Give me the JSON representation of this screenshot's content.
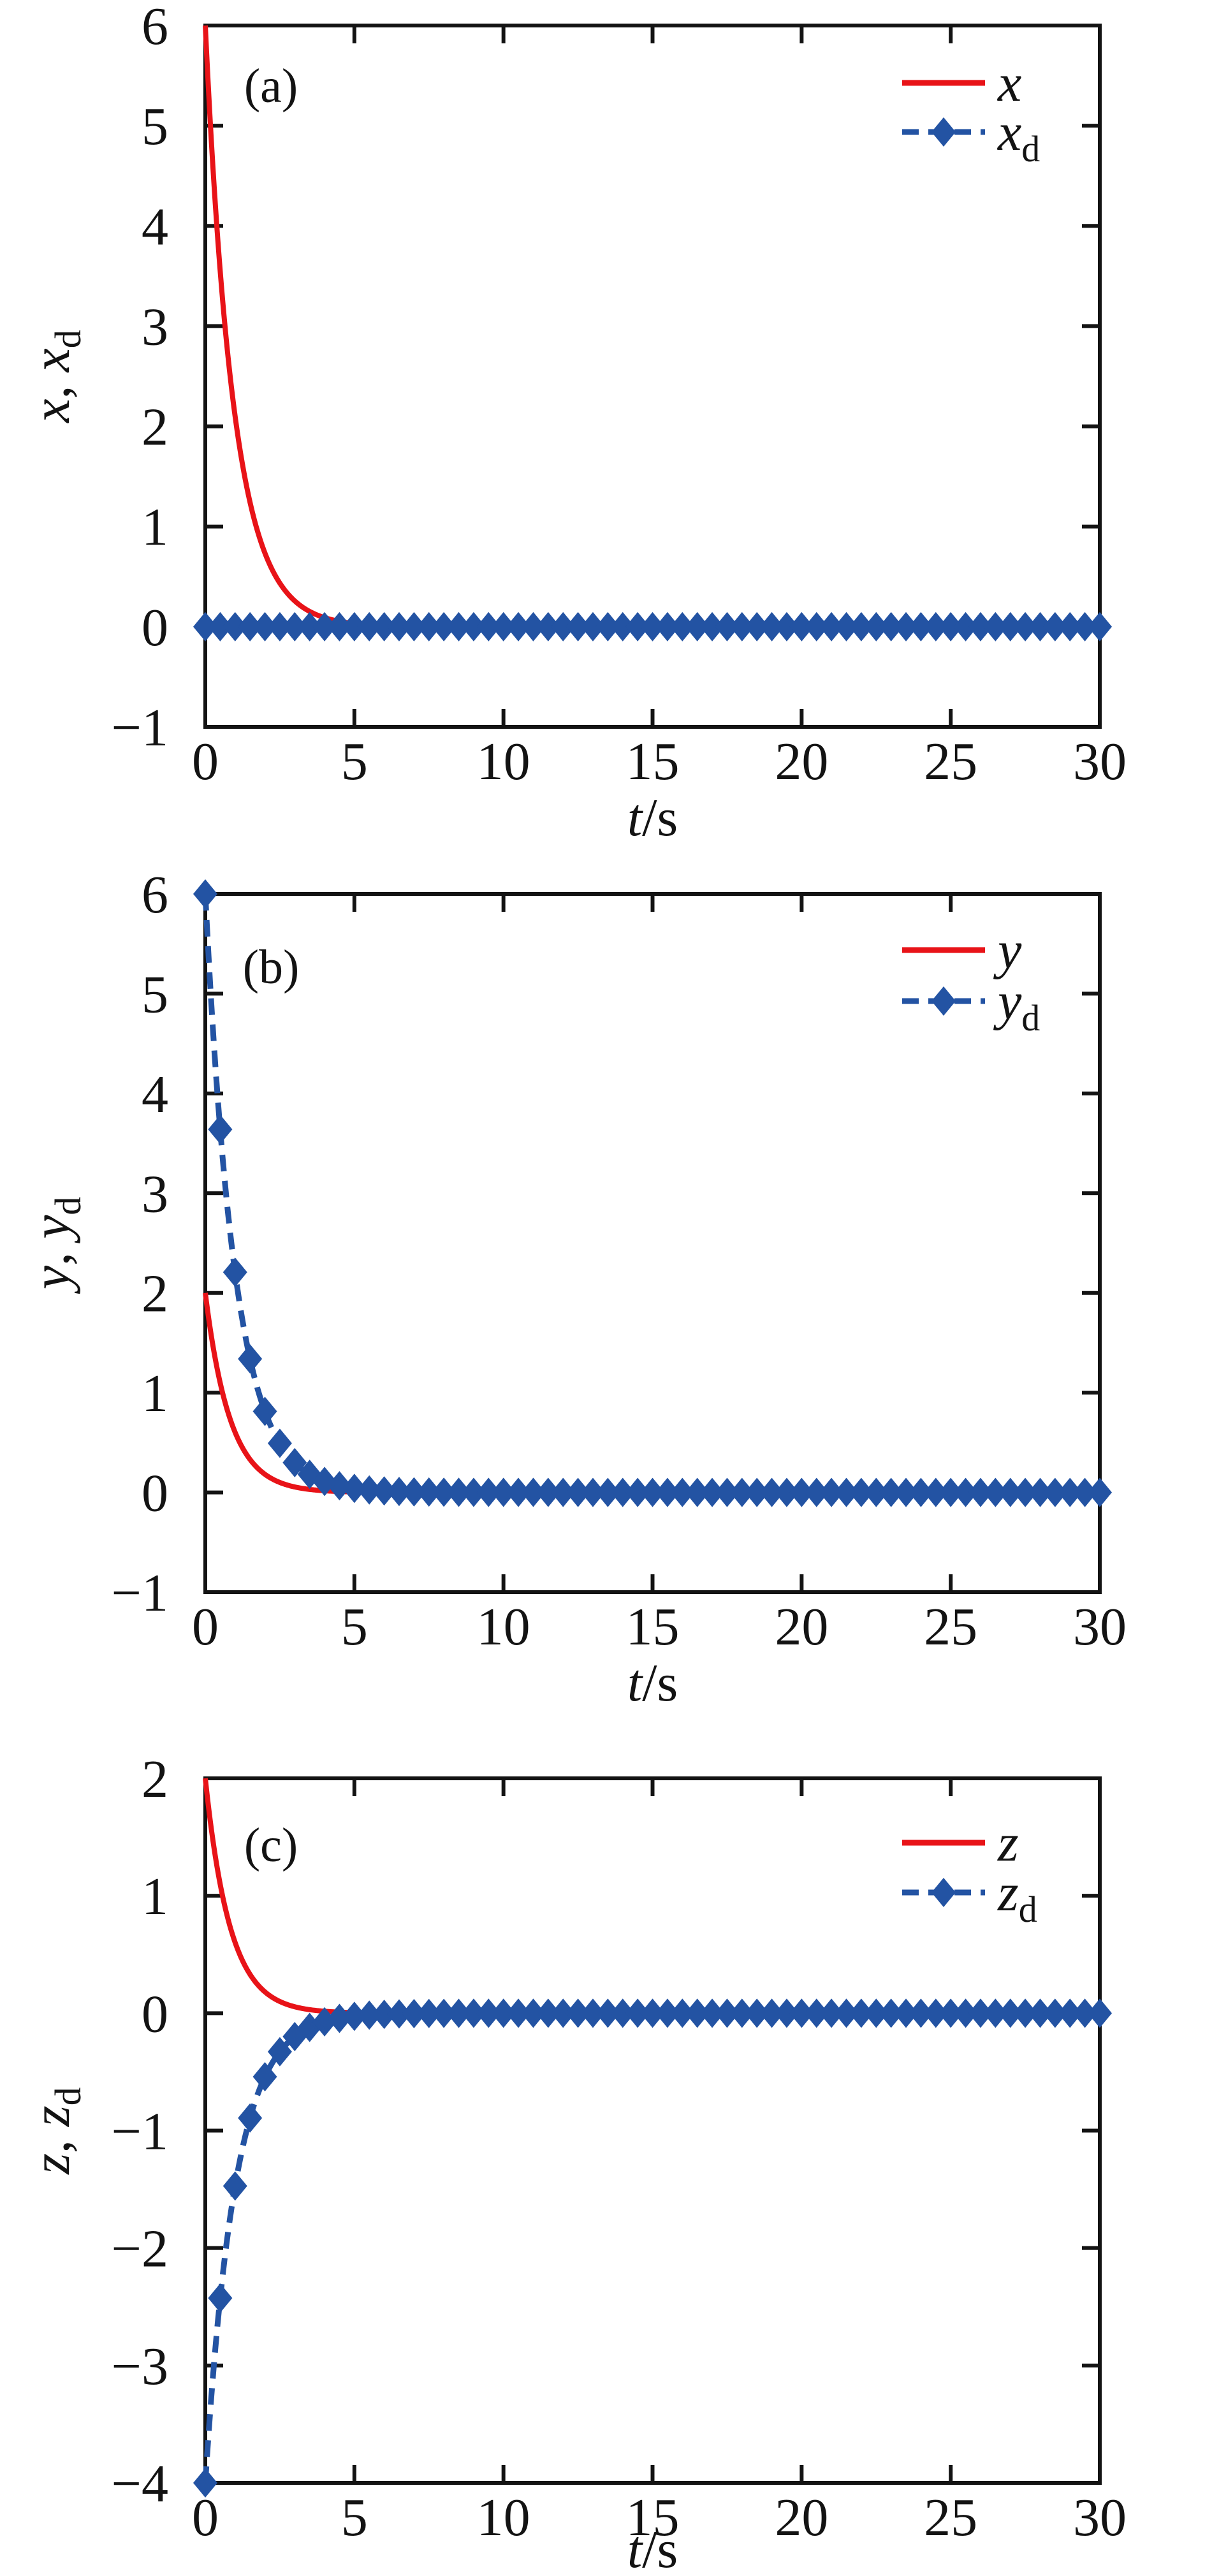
{
  "figure_title": "",
  "chart_data": {
    "type": "line",
    "description": "Three stacked time-response plots (a), (b), (c): actual states x, y, z (red solid) converging to desired trajectories x_d, y_d, z_d (blue dashed with diamond markers).",
    "grid": false,
    "legend_position": "top-right",
    "colors": {
      "actual": "#e81318",
      "desired": "#2353a3",
      "axis": "#131313",
      "background": "#ffffff"
    },
    "x_axis": {
      "label_var": "t",
      "label_sep": "/",
      "label_unit": "s",
      "min": 0,
      "max": 30,
      "ticks": [
        0,
        5,
        10,
        15,
        20,
        25,
        30
      ]
    },
    "marker_step_s": 0.5,
    "panels": [
      {
        "id": "a",
        "panel_label": "(a)",
        "ylabel": {
          "var1": "x",
          "sep": ", ",
          "var2": "x",
          "sub2": "d"
        },
        "ylim": [
          -1,
          6
        ],
        "yticks": [
          -1,
          0,
          1,
          2,
          3,
          4,
          5,
          6
        ],
        "series": [
          {
            "key": "x",
            "legend_main": "x",
            "legend_sub": "",
            "color": "#e81318",
            "line": "solid",
            "marker": "none",
            "model": "x(t) = 6*exp(-1.05*t)",
            "amp": 6,
            "rate": 1.05,
            "sample_t": [
              0,
              0.5,
              1,
              1.5,
              2,
              2.5,
              3,
              3.5,
              4,
              4.5,
              5,
              10,
              20,
              30
            ],
            "sample_y": [
              6,
              3.55,
              2.1,
              1.24,
              0.73,
              0.43,
              0.26,
              0.15,
              0.09,
              0.05,
              0.03,
              0,
              0,
              0
            ]
          },
          {
            "key": "x_d",
            "legend_main": "x",
            "legend_sub": "d",
            "color": "#2353a3",
            "line": "dashed",
            "marker": "diamond",
            "model": "x_d(t) = 0",
            "amp": 0,
            "rate": 0,
            "sample_t": [
              0,
              5,
              10,
              15,
              20,
              25,
              30
            ],
            "sample_y": [
              0,
              0,
              0,
              0,
              0,
              0,
              0
            ]
          }
        ]
      },
      {
        "id": "b",
        "panel_label": "(b)",
        "ylabel": {
          "var1": "y",
          "sep": ", ",
          "var2": "y",
          "sub2": "d"
        },
        "ylim": [
          -1,
          6
        ],
        "yticks": [
          -1,
          0,
          1,
          2,
          3,
          4,
          5,
          6
        ],
        "series": [
          {
            "key": "y",
            "legend_main": "y",
            "legend_sub": "",
            "color": "#e81318",
            "line": "solid",
            "marker": "none",
            "model": "y(t) = 2*exp(-1.2*t)",
            "amp": 2,
            "rate": 1.2,
            "sample_t": [
              0,
              0.5,
              1,
              1.5,
              2,
              2.5,
              3,
              3.5,
              4,
              4.5,
              5,
              10,
              20,
              30
            ],
            "sample_y": [
              2,
              1.1,
              0.6,
              0.33,
              0.18,
              0.1,
              0.055,
              0.03,
              0.016,
              0.009,
              0.005,
              0,
              0,
              0
            ]
          },
          {
            "key": "y_d",
            "legend_main": "y",
            "legend_sub": "d",
            "color": "#2353a3",
            "line": "dashed",
            "marker": "diamond",
            "model": "y_d(t) = 6*exp(-t)",
            "amp": 6,
            "rate": 1,
            "sample_t": [
              0,
              0.5,
              1,
              1.5,
              2,
              2.5,
              3,
              3.5,
              4,
              4.5,
              5,
              10,
              20,
              30
            ],
            "sample_y": [
              6,
              3.64,
              2.21,
              1.34,
              0.81,
              0.49,
              0.3,
              0.18,
              0.11,
              0.067,
              0.04,
              0,
              0,
              0
            ]
          }
        ]
      },
      {
        "id": "c",
        "panel_label": "(c)",
        "ylabel": {
          "var1": "z",
          "sep": ", ",
          "var2": "z",
          "sub2": "d"
        },
        "ylim": [
          -4,
          2
        ],
        "yticks": [
          -4,
          -3,
          -2,
          -1,
          0,
          1,
          2
        ],
        "series": [
          {
            "key": "z",
            "legend_main": "z",
            "legend_sub": "",
            "color": "#e81318",
            "line": "solid",
            "marker": "none",
            "model": "z(t) = 2*exp(-1.2*t)",
            "amp": 2,
            "rate": 1.2,
            "sample_t": [
              0,
              0.5,
              1,
              1.5,
              2,
              2.5,
              3,
              3.5,
              4,
              4.5,
              5,
              10,
              20,
              30
            ],
            "sample_y": [
              2,
              1.1,
              0.6,
              0.33,
              0.18,
              0.1,
              0.055,
              0.03,
              0.016,
              0.009,
              0.005,
              0,
              0,
              0
            ]
          },
          {
            "key": "z_d",
            "legend_main": "z",
            "legend_sub": "d",
            "color": "#2353a3",
            "line": "dashed",
            "marker": "diamond",
            "model": "z_d(t) = -4*exp(-t)",
            "amp": -4,
            "rate": 1,
            "sample_t": [
              0,
              0.5,
              1,
              1.5,
              2,
              2.5,
              3,
              3.5,
              4,
              4.5,
              5,
              10,
              20,
              30
            ],
            "sample_y": [
              -4,
              -2.43,
              -1.47,
              -0.89,
              -0.54,
              -0.33,
              -0.2,
              -0.12,
              -0.073,
              -0.044,
              -0.027,
              0,
              0,
              0
            ]
          }
        ]
      }
    ]
  }
}
